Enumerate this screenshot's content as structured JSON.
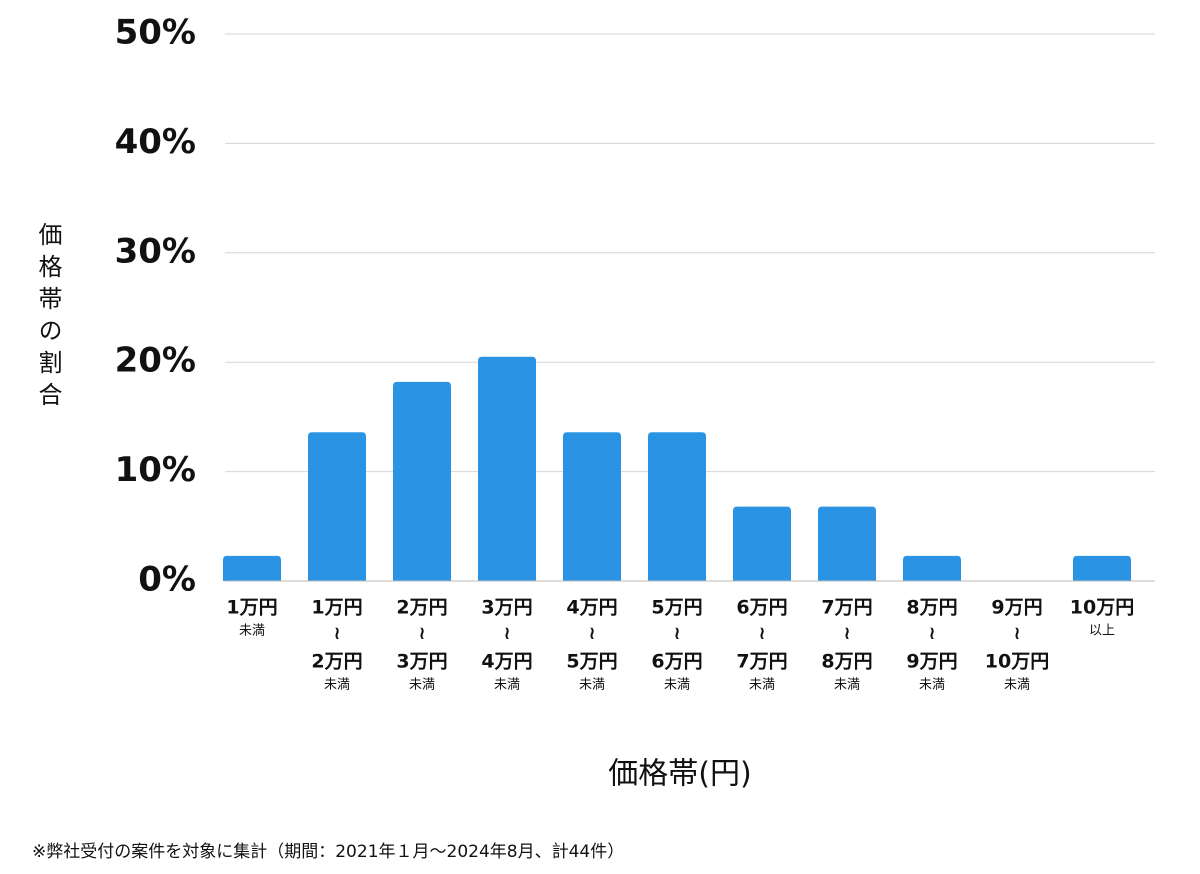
{
  "chart_data": {
    "type": "bar",
    "ylabel": "価格帯の割合",
    "xlabel": "価格帯(円)",
    "note": "※弊社受付の案件を対象に集計（期間：2021年１月〜2024年8月、計44件）",
    "categories": [
      [
        "1万円",
        "未満"
      ],
      [
        "1万円",
        "≀",
        "2万円",
        "未満"
      ],
      [
        "2万円",
        "≀",
        "3万円",
        "未満"
      ],
      [
        "3万円",
        "≀",
        "4万円",
        "未満"
      ],
      [
        "4万円",
        "≀",
        "5万円",
        "未満"
      ],
      [
        "5万円",
        "≀",
        "6万円",
        "未満"
      ],
      [
        "6万円",
        "≀",
        "7万円",
        "未満"
      ],
      [
        "7万円",
        "≀",
        "8万円",
        "未満"
      ],
      [
        "8万円",
        "≀",
        "9万円",
        "未満"
      ],
      [
        "9万円",
        "≀",
        "10万円",
        "未満"
      ],
      [
        "10万円",
        "以上"
      ]
    ],
    "values": [
      2.3,
      13.6,
      18.2,
      20.5,
      13.6,
      13.6,
      6.8,
      6.8,
      2.3,
      0,
      2.3
    ],
    "color": "#2b93e3",
    "ylim": [
      0,
      50
    ],
    "yticks": [
      {
        "value": 0,
        "label": "0%"
      },
      {
        "value": 10,
        "label": "10%"
      },
      {
        "value": 20,
        "label": "20%"
      },
      {
        "value": 30,
        "label": "30%"
      },
      {
        "value": 40,
        "label": "40%"
      },
      {
        "value": 50,
        "label": "50%"
      }
    ],
    "grid": true
  }
}
